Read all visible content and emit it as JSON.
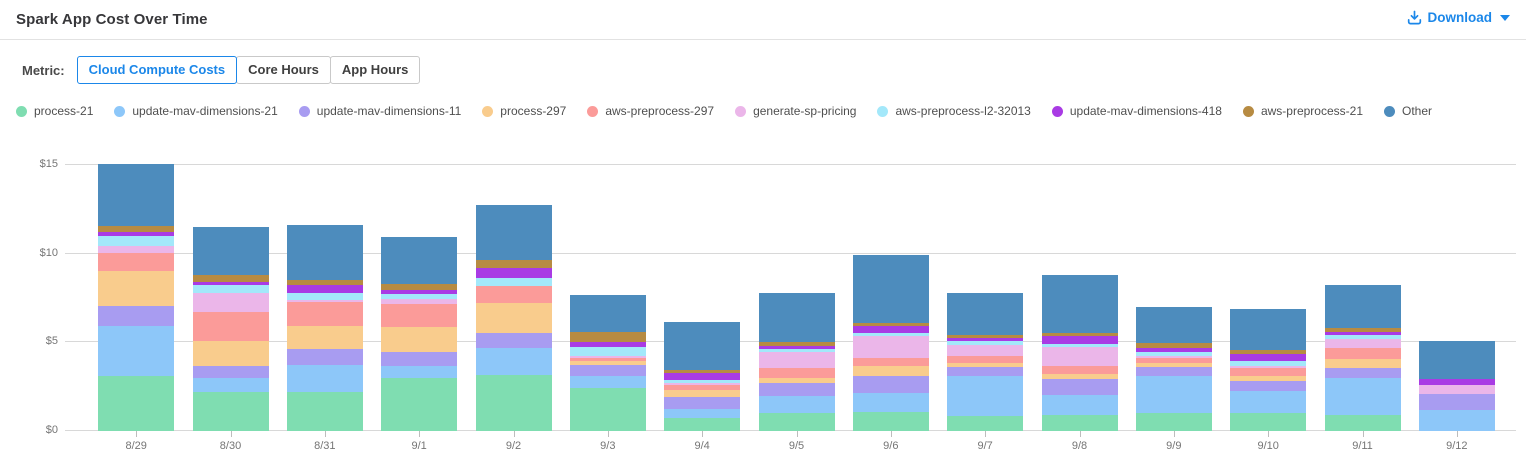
{
  "header": {
    "title": "Spark App Cost Over Time",
    "download_label": "Download"
  },
  "metric_bar": {
    "label": "Metric:",
    "selected": "Cloud Compute Costs",
    "options": [
      "Cloud Compute Costs",
      "Core Hours",
      "App Hours"
    ]
  },
  "colors": {
    "accent_blue": "#1B87E9",
    "grid_line": "#D8D8D8",
    "axis_text": "#757575",
    "legend_text": "#4F4F4F"
  },
  "chart_data": {
    "type": "bar",
    "stacked": true,
    "title": "Spark App Cost Over Time",
    "xlabel": "",
    "ylabel": "",
    "ytick_prefix": "$",
    "yticks": [
      0,
      5,
      10,
      15
    ],
    "ytick_labels": [
      "$0",
      "$5",
      "$10",
      "$15"
    ],
    "ylim": [
      0,
      16.3
    ],
    "grid": true,
    "legend_position": "top",
    "categories": [
      "8/29",
      "8/30",
      "8/31",
      "9/1",
      "9/2",
      "9/3",
      "9/4",
      "9/5",
      "9/6",
      "9/7",
      "9/8",
      "9/9",
      "9/10",
      "9/11",
      "9/12"
    ],
    "series": [
      {
        "name": "process-21",
        "color": "#7FDDB1",
        "values": [
          3.13,
          2.19,
          2.19,
          2.98,
          3.15,
          2.45,
          0.76,
          1.04,
          1.09,
          0.85,
          0.91,
          1.04,
          1.04,
          0.91,
          0.0
        ]
      },
      {
        "name": "update-mav-dimensions-21",
        "color": "#8DC7F9",
        "values": [
          2.77,
          0.79,
          1.55,
          0.66,
          1.53,
          0.66,
          0.51,
          0.91,
          1.08,
          2.23,
          1.13,
          2.04,
          1.19,
          2.08,
          1.19
        ]
      },
      {
        "name": "update-mav-dimensions-11",
        "color": "#A89CF1",
        "values": [
          1.13,
          0.7,
          0.91,
          0.81,
          0.83,
          0.62,
          0.66,
          0.75,
          0.94,
          0.53,
          0.89,
          0.53,
          0.57,
          0.57,
          0.89
        ]
      },
      {
        "name": "process-297",
        "color": "#F9CC8D",
        "values": [
          1.99,
          1.41,
          1.26,
          1.4,
          1.72,
          0.2,
          0.38,
          0.28,
          0.57,
          0.23,
          0.3,
          0.23,
          0.28,
          0.51,
          0.0
        ]
      },
      {
        "name": "aws-preprocess-297",
        "color": "#FB9B99",
        "values": [
          1.04,
          1.6,
          1.36,
          1.34,
          0.94,
          0.2,
          0.28,
          0.57,
          0.43,
          0.38,
          0.42,
          0.28,
          0.47,
          0.62,
          0.0
        ]
      },
      {
        "name": "generate-sp-pricing",
        "color": "#EBB6E9",
        "values": [
          0.37,
          1.1,
          0.1,
          0.26,
          0.0,
          0.08,
          0.13,
          0.89,
          1.26,
          0.66,
          1.09,
          0.1,
          0.13,
          0.51,
          0.51
        ]
      },
      {
        "name": "aws-preprocess-l2-32013",
        "color": "#A3E8FA",
        "values": [
          0.57,
          0.42,
          0.4,
          0.3,
          0.47,
          0.55,
          0.15,
          0.19,
          0.15,
          0.21,
          0.17,
          0.26,
          0.25,
          0.23,
          0.0
        ]
      },
      {
        "name": "update-mav-dimensions-418",
        "color": "#A93BE4",
        "values": [
          0.25,
          0.2,
          0.45,
          0.19,
          0.53,
          0.28,
          0.41,
          0.15,
          0.38,
          0.15,
          0.43,
          0.23,
          0.43,
          0.15,
          0.34
        ]
      },
      {
        "name": "aws-preprocess-21",
        "color": "#B78B42",
        "values": [
          0.32,
          0.42,
          0.3,
          0.34,
          0.47,
          0.53,
          0.15,
          0.23,
          0.19,
          0.17,
          0.17,
          0.26,
          0.23,
          0.25,
          0.0
        ]
      },
      {
        "name": "Other",
        "color": "#4D8CBD",
        "values": [
          3.49,
          2.7,
          3.09,
          2.64,
          3.09,
          2.13,
          2.72,
          2.76,
          3.85,
          2.4,
          3.28,
          2.04,
          2.3,
          2.4,
          2.16
        ]
      }
    ],
    "bar_totals": [
      15.06,
      11.53,
      11.61,
      10.92,
      12.73,
      7.7,
      6.15,
      7.77,
      9.94,
      7.81,
      8.79,
      7.01,
      6.89,
      8.23,
      5.09
    ]
  }
}
